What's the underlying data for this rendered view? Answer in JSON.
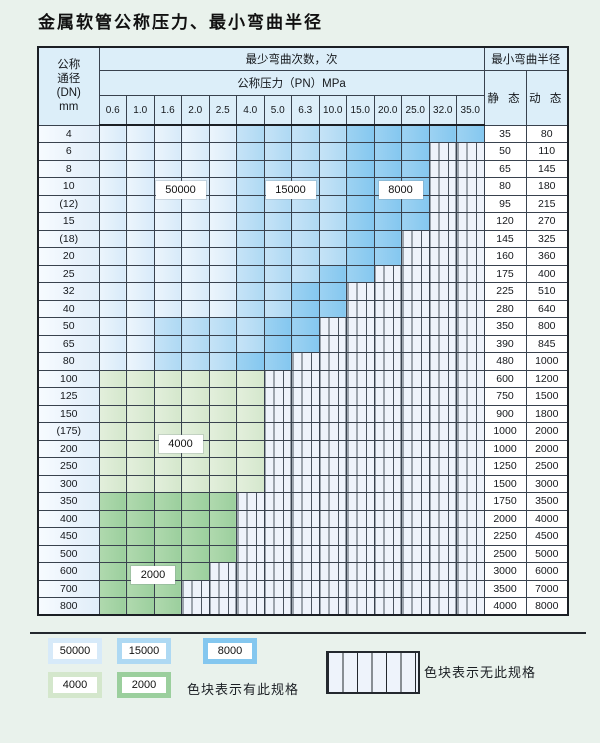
{
  "title": "金属软管公称压力、最小弯曲半径",
  "table": {
    "header": {
      "dn_lines": [
        "公称",
        "通径",
        "(DN)",
        "mm"
      ],
      "bend_cycles": "最少弯曲次数，次",
      "pressure": "公称压力（PN）MPa",
      "min_radius": "最小弯曲半径",
      "static": "静 态",
      "dynamic": "动 态",
      "pressure_cols": [
        "0.6",
        "1.0",
        "1.6",
        "2.0",
        "2.5",
        "4.0",
        "5.0",
        "6.3",
        "10.0",
        "15.0",
        "20.0",
        "25.0",
        "32.0",
        "35.0"
      ]
    },
    "cell_legend_codes": {
      "b1": "50000次",
      "b2": "15000次",
      "b3": "8000次",
      "g1": "4000次",
      "g2": "2000次",
      "h": "无此规格"
    },
    "rows": [
      {
        "dn": "4",
        "static": "35",
        "dynamic": "80",
        "cells": [
          "b1",
          "b1",
          "b1",
          "b1",
          "b1",
          "b2",
          "b2",
          "b2",
          "b2",
          "b3",
          "b3",
          "b3",
          "b3",
          "b3"
        ]
      },
      {
        "dn": "6",
        "static": "50",
        "dynamic": "110",
        "cells": [
          "b1",
          "b1",
          "b1",
          "b1",
          "b1",
          "b2",
          "b2",
          "b2",
          "b2",
          "b3",
          "b3",
          "b3",
          "h",
          "h"
        ]
      },
      {
        "dn": "8",
        "static": "65",
        "dynamic": "145",
        "cells": [
          "b1",
          "b1",
          "b1",
          "b1",
          "b1",
          "b2",
          "b2",
          "b2",
          "b2",
          "b3",
          "b3",
          "b3",
          "h",
          "h"
        ]
      },
      {
        "dn": "10",
        "static": "80",
        "dynamic": "180",
        "cells": [
          "b1",
          "b1",
          "b1",
          "b1",
          "b1",
          "b2",
          "b2",
          "b2",
          "b2",
          "b3",
          "b3",
          "b3",
          "h",
          "h"
        ]
      },
      {
        "dn": "(12)",
        "static": "95",
        "dynamic": "215",
        "cells": [
          "b1",
          "b1",
          "b1",
          "b1",
          "b1",
          "b2",
          "b2",
          "b2",
          "b2",
          "b3",
          "b3",
          "b3",
          "h",
          "h"
        ]
      },
      {
        "dn": "15",
        "static": "120",
        "dynamic": "270",
        "cells": [
          "b1",
          "b1",
          "b1",
          "b1",
          "b1",
          "b2",
          "b2",
          "b2",
          "b2",
          "b3",
          "b3",
          "b3",
          "h",
          "h"
        ]
      },
      {
        "dn": "(18)",
        "static": "145",
        "dynamic": "325",
        "cells": [
          "b1",
          "b1",
          "b1",
          "b1",
          "b1",
          "b2",
          "b2",
          "b2",
          "b2",
          "b3",
          "b3",
          "h",
          "h",
          "h"
        ]
      },
      {
        "dn": "20",
        "static": "160",
        "dynamic": "360",
        "cells": [
          "b1",
          "b1",
          "b1",
          "b1",
          "b1",
          "b2",
          "b2",
          "b2",
          "b2",
          "b3",
          "b3",
          "h",
          "h",
          "h"
        ]
      },
      {
        "dn": "25",
        "static": "175",
        "dynamic": "400",
        "cells": [
          "b1",
          "b1",
          "b1",
          "b1",
          "b1",
          "b2",
          "b2",
          "b2",
          "b3",
          "b3",
          "h",
          "h",
          "h",
          "h"
        ]
      },
      {
        "dn": "32",
        "static": "225",
        "dynamic": "510",
        "cells": [
          "b1",
          "b1",
          "b1",
          "b1",
          "b1",
          "b2",
          "b2",
          "b3",
          "b3",
          "h",
          "h",
          "h",
          "h",
          "h"
        ]
      },
      {
        "dn": "40",
        "static": "280",
        "dynamic": "640",
        "cells": [
          "b1",
          "b1",
          "b1",
          "b1",
          "b1",
          "b2",
          "b2",
          "b3",
          "b3",
          "h",
          "h",
          "h",
          "h",
          "h"
        ]
      },
      {
        "dn": "50",
        "static": "350",
        "dynamic": "800",
        "cells": [
          "b1",
          "b1",
          "b2",
          "b2",
          "b2",
          "b2",
          "b3",
          "b3",
          "h",
          "h",
          "h",
          "h",
          "h",
          "h"
        ]
      },
      {
        "dn": "65",
        "static": "390",
        "dynamic": "845",
        "cells": [
          "b1",
          "b1",
          "b2",
          "b2",
          "b2",
          "b2",
          "b3",
          "b3",
          "h",
          "h",
          "h",
          "h",
          "h",
          "h"
        ]
      },
      {
        "dn": "80",
        "static": "480",
        "dynamic": "1000",
        "cells": [
          "b1",
          "b1",
          "b2",
          "b2",
          "b2",
          "b3",
          "b3",
          "h",
          "h",
          "h",
          "h",
          "h",
          "h",
          "h"
        ]
      },
      {
        "dn": "100",
        "static": "600",
        "dynamic": "1200",
        "cells": [
          "g1",
          "g1",
          "g1",
          "g1",
          "g1",
          "g1",
          "h",
          "h",
          "h",
          "h",
          "h",
          "h",
          "h",
          "h"
        ]
      },
      {
        "dn": "125",
        "static": "750",
        "dynamic": "1500",
        "cells": [
          "g1",
          "g1",
          "g1",
          "g1",
          "g1",
          "g1",
          "h",
          "h",
          "h",
          "h",
          "h",
          "h",
          "h",
          "h"
        ]
      },
      {
        "dn": "150",
        "static": "900",
        "dynamic": "1800",
        "cells": [
          "g1",
          "g1",
          "g1",
          "g1",
          "g1",
          "g1",
          "h",
          "h",
          "h",
          "h",
          "h",
          "h",
          "h",
          "h"
        ]
      },
      {
        "dn": "(175)",
        "static": "1000",
        "dynamic": "2000",
        "cells": [
          "g1",
          "g1",
          "g1",
          "g1",
          "g1",
          "g1",
          "h",
          "h",
          "h",
          "h",
          "h",
          "h",
          "h",
          "h"
        ]
      },
      {
        "dn": "200",
        "static": "1000",
        "dynamic": "2000",
        "cells": [
          "g1",
          "g1",
          "g1",
          "g1",
          "g1",
          "g1",
          "h",
          "h",
          "h",
          "h",
          "h",
          "h",
          "h",
          "h"
        ]
      },
      {
        "dn": "250",
        "static": "1250",
        "dynamic": "2500",
        "cells": [
          "g1",
          "g1",
          "g1",
          "g1",
          "g1",
          "g1",
          "h",
          "h",
          "h",
          "h",
          "h",
          "h",
          "h",
          "h"
        ]
      },
      {
        "dn": "300",
        "static": "1500",
        "dynamic": "3000",
        "cells": [
          "g1",
          "g1",
          "g1",
          "g1",
          "g1",
          "g1",
          "h",
          "h",
          "h",
          "h",
          "h",
          "h",
          "h",
          "h"
        ]
      },
      {
        "dn": "350",
        "static": "1750",
        "dynamic": "3500",
        "cells": [
          "g2",
          "g2",
          "g2",
          "g2",
          "g2",
          "h",
          "h",
          "h",
          "h",
          "h",
          "h",
          "h",
          "h",
          "h"
        ]
      },
      {
        "dn": "400",
        "static": "2000",
        "dynamic": "4000",
        "cells": [
          "g2",
          "g2",
          "g2",
          "g2",
          "g2",
          "h",
          "h",
          "h",
          "h",
          "h",
          "h",
          "h",
          "h",
          "h"
        ]
      },
      {
        "dn": "450",
        "static": "2250",
        "dynamic": "4500",
        "cells": [
          "g2",
          "g2",
          "g2",
          "g2",
          "g2",
          "h",
          "h",
          "h",
          "h",
          "h",
          "h",
          "h",
          "h",
          "h"
        ]
      },
      {
        "dn": "500",
        "static": "2500",
        "dynamic": "5000",
        "cells": [
          "g2",
          "g2",
          "g2",
          "g2",
          "g2",
          "h",
          "h",
          "h",
          "h",
          "h",
          "h",
          "h",
          "h",
          "h"
        ]
      },
      {
        "dn": "600",
        "static": "3000",
        "dynamic": "6000",
        "cells": [
          "g2",
          "g2",
          "g2",
          "g2",
          "h",
          "h",
          "h",
          "h",
          "h",
          "h",
          "h",
          "h",
          "h",
          "h"
        ]
      },
      {
        "dn": "700",
        "static": "3500",
        "dynamic": "7000",
        "cells": [
          "g2",
          "g2",
          "g2",
          "h",
          "h",
          "h",
          "h",
          "h",
          "h",
          "h",
          "h",
          "h",
          "h",
          "h"
        ]
      },
      {
        "dn": "800",
        "static": "4000",
        "dynamic": "8000",
        "cells": [
          "g2",
          "g2",
          "g2",
          "h",
          "h",
          "h",
          "h",
          "h",
          "h",
          "h",
          "h",
          "h",
          "h",
          "h"
        ]
      }
    ],
    "overlay_labels": [
      {
        "text": "50000",
        "col_start": 2,
        "col_end": 3,
        "row_start": 3,
        "row_end": 4
      },
      {
        "text": "15000",
        "col_start": 6,
        "col_end": 7,
        "row_start": 3,
        "row_end": 4
      },
      {
        "text": "8000",
        "col_start": 10,
        "col_end": 11,
        "row_start": 3,
        "row_end": 4
      },
      {
        "text": "4000",
        "col_start": 2,
        "col_end": 3,
        "row_start": 18,
        "row_end": 18
      },
      {
        "text": "2000",
        "col_start": 1,
        "col_end": 2,
        "row_start": 25,
        "row_end": 26
      }
    ]
  },
  "legend": {
    "items": [
      {
        "label": "50000",
        "code": "b1"
      },
      {
        "label": "15000",
        "code": "b2"
      },
      {
        "label": "8000",
        "code": "b3"
      },
      {
        "label": "4000",
        "code": "g1"
      },
      {
        "label": "2000",
        "code": "g2"
      }
    ],
    "has_spec_text": "色块表示有此规格",
    "no_spec_text": "色块表示无此规格"
  },
  "colors": {
    "page_bg": "#e9f2ec",
    "header_bg": "#dceef9",
    "blue_50000": "#d7eaf9",
    "blue_15000": "#aed9f3",
    "blue_8000": "#84c7ef",
    "green_4000": "#d4e7cc",
    "green_2000": "#9bcf9d",
    "hatch_bg": "#eef3fb"
  }
}
